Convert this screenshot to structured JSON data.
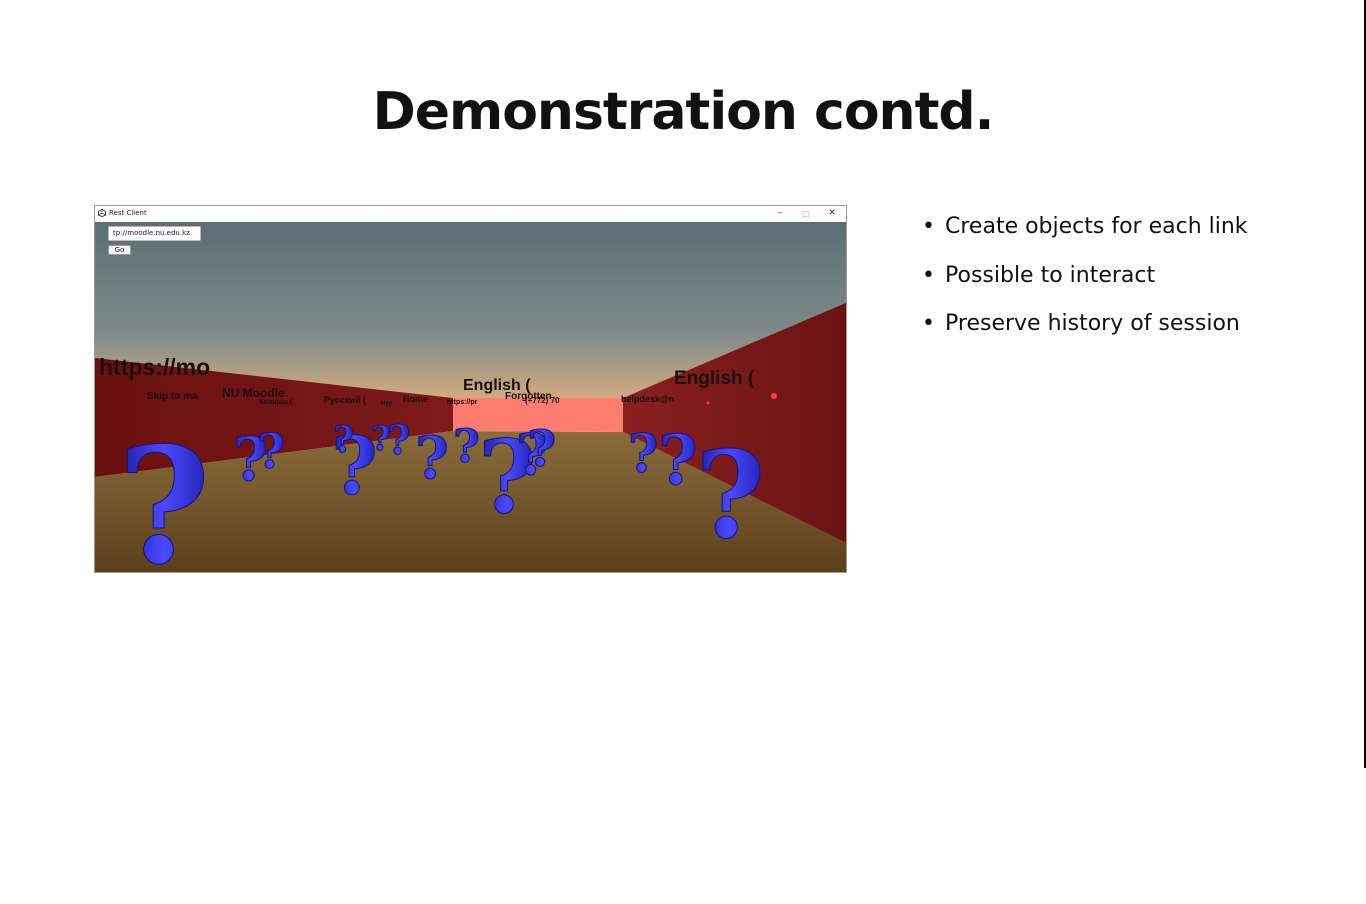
{
  "slide": {
    "title": "Demonstration contd.",
    "bullets": [
      {
        "text": "Create objects for each link"
      },
      {
        "text": "Possible to interact"
      },
      {
        "text": "Preserve history of session"
      }
    ],
    "bullet_symbol": "•"
  },
  "app_window": {
    "title": "Rest Client",
    "icon": "unity-icon",
    "controls": {
      "minimize": "–",
      "maximize": "□",
      "close": "✕"
    },
    "url_field": {
      "value": "tp://moodle.nu.edu.kz"
    },
    "go_label": "Go",
    "scene": {
      "link_labels": [
        {
          "text": "https://mo"
        },
        {
          "text": "Skip to ma"
        },
        {
          "text": "NU Moodle"
        },
        {
          "text": "Казақша ("
        },
        {
          "text": "Русский ("
        },
        {
          "text": "Нұр"
        },
        {
          "text": "Home"
        },
        {
          "text": "https://pr"
        },
        {
          "text": "English ("
        },
        {
          "text": "Forgotten"
        },
        {
          "text": "(+772) 70"
        },
        {
          "text": "helpdesk@n"
        },
        {
          "text": "English ("
        }
      ],
      "link_object": "question-mark-icon",
      "colors": {
        "wall": "#7a1616",
        "floor": "#6e4f22",
        "sky": "#5f7078",
        "horizon_glow": "#ff7a70",
        "object": "#3a3aff"
      }
    }
  }
}
